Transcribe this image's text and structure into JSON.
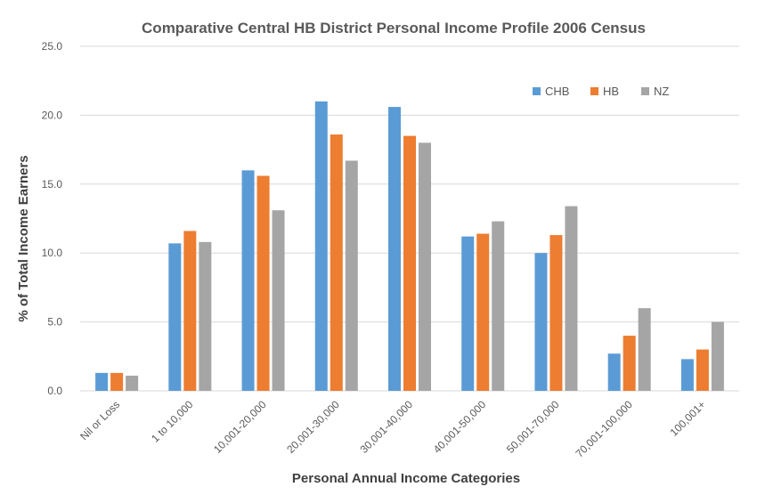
{
  "chart_data": {
    "type": "bar",
    "title": "Comparative Central HB District Personal Income Profile 2006 Census",
    "xlabel": "Personal Annual Income Categories",
    "ylabel": "% of Total Income Earners",
    "ylim": [
      0,
      25
    ],
    "yticks": [
      "0.0",
      "5.0",
      "10.0",
      "15.0",
      "20.0",
      "25.0"
    ],
    "grid": true,
    "legend_position": "top-right",
    "categories": [
      "Nil or Loss",
      "1 to 10,000",
      "10,001-20,000",
      "20,001-30,000",
      "30,001-40,000",
      "40,001-50,000",
      "50,001-70,000",
      "70,001-100,000",
      "100,001+"
    ],
    "series": [
      {
        "name": "CHB",
        "color": "#5b9bd5",
        "values": [
          1.3,
          10.7,
          16.0,
          21.0,
          20.6,
          11.2,
          10.0,
          2.7,
          2.3
        ]
      },
      {
        "name": "HB",
        "color": "#ed7d31",
        "values": [
          1.3,
          11.6,
          15.6,
          18.6,
          18.5,
          11.4,
          11.3,
          4.0,
          3.0
        ]
      },
      {
        "name": "NZ",
        "color": "#a5a5a5",
        "values": [
          1.1,
          10.8,
          13.1,
          16.7,
          18.0,
          12.3,
          13.4,
          6.0,
          5.0
        ]
      }
    ]
  }
}
